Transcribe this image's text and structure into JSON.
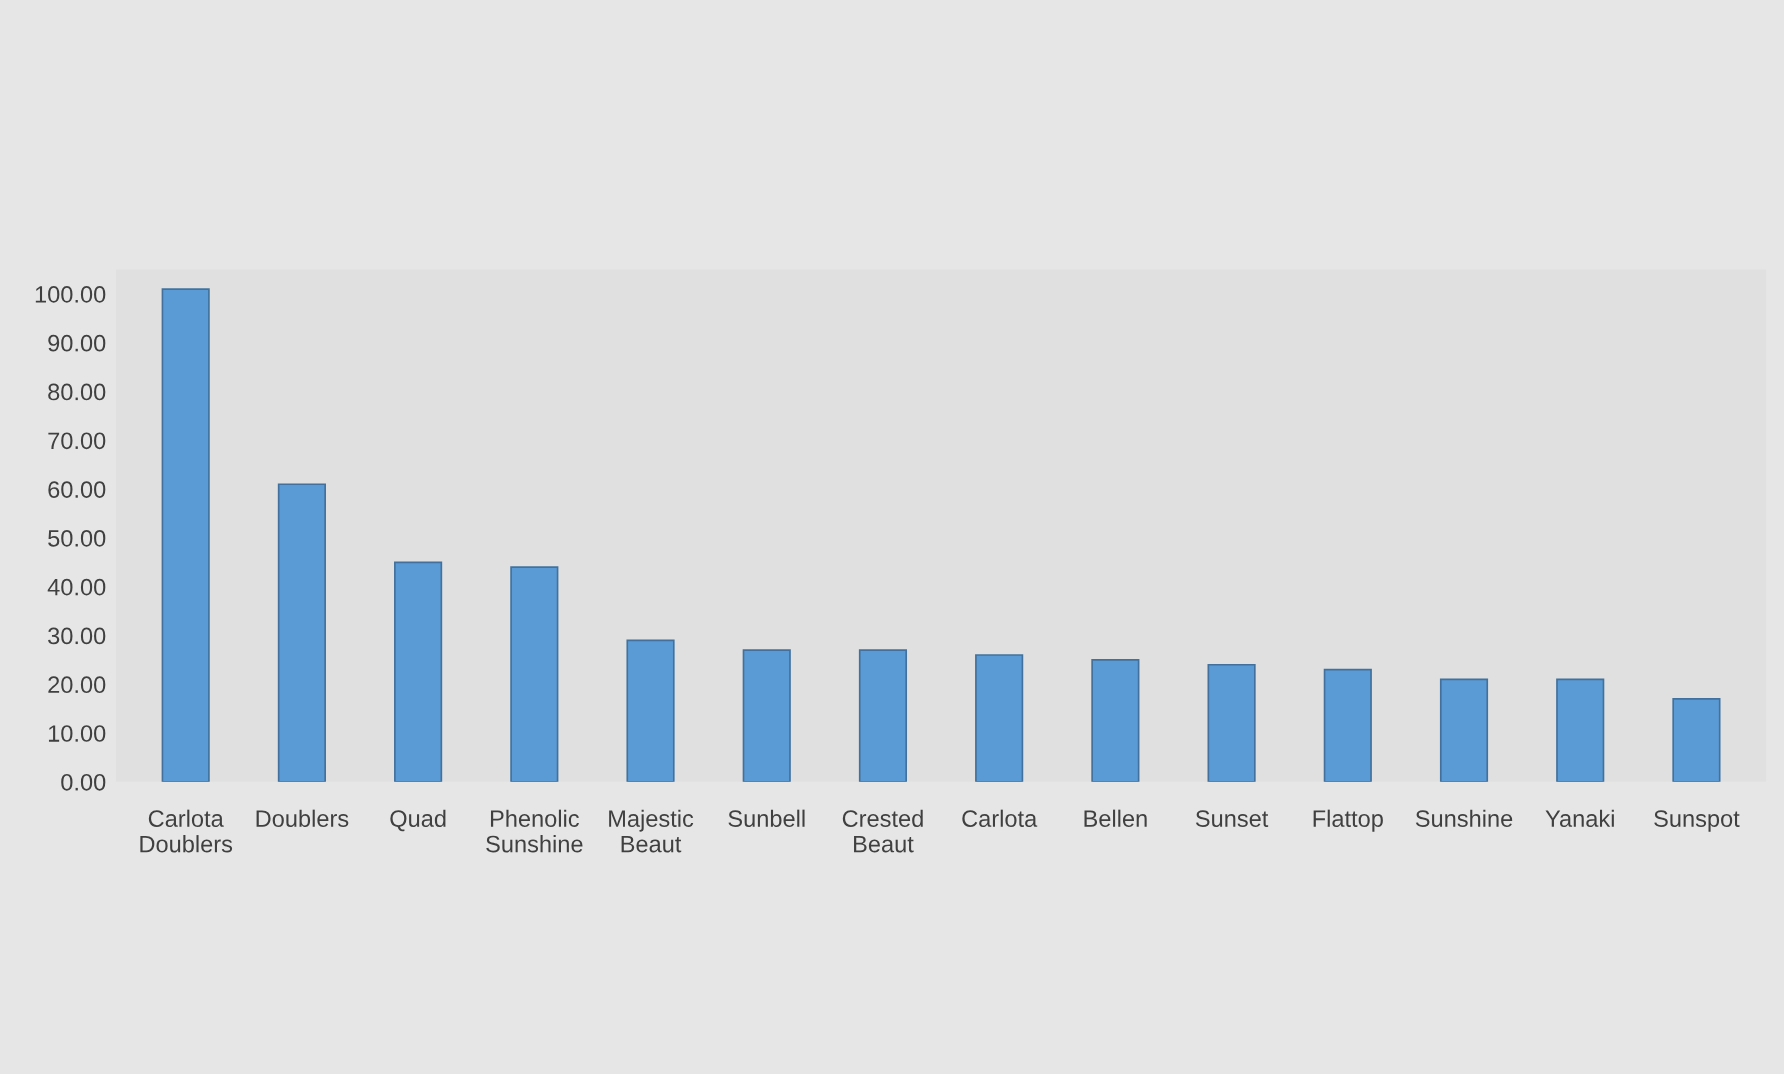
{
  "chart_data": {
    "type": "bar",
    "categories": [
      "Carlota Doublers",
      "Doublers",
      "Quad",
      "Phenolic Sunshine",
      "Majestic Beaut",
      "Sunbell",
      "Crested Beaut",
      "Carlota",
      "Bellen",
      "Sunset",
      "Flattop",
      "Sunshine",
      "Yanaki",
      "Sunspot"
    ],
    "values": [
      101,
      61,
      45,
      44,
      29,
      27,
      27,
      26,
      25,
      24,
      23,
      21,
      21,
      17
    ],
    "color": "#5b9bd5",
    "ylim": [
      0,
      105
    ],
    "yticks": [
      {
        "value": 0,
        "label": "0.00"
      },
      {
        "value": 10,
        "label": "10.00"
      },
      {
        "value": 20,
        "label": "20.00"
      },
      {
        "value": 30,
        "label": "30.00"
      },
      {
        "value": 40,
        "label": "40.00"
      },
      {
        "value": 50,
        "label": "50.00"
      },
      {
        "value": 60,
        "label": "60.00"
      },
      {
        "value": 70,
        "label": "70.00"
      },
      {
        "value": 80,
        "label": "80.00"
      },
      {
        "value": 90,
        "label": "90.00"
      },
      {
        "value": 100,
        "label": "100.00"
      }
    ],
    "grid": false
  }
}
